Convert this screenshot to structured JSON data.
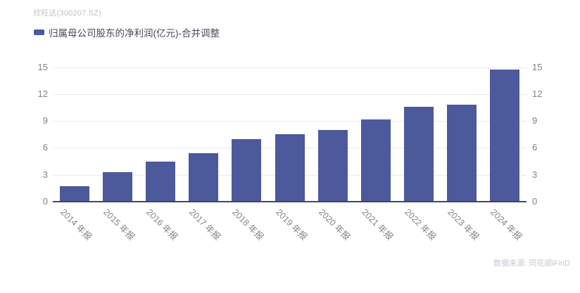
{
  "header": {
    "title": "欣旺达(300207.SZ)"
  },
  "legend": {
    "label": "归属母公司股东的净利润(亿元)-合并调整",
    "marker_color": "#4c599b"
  },
  "footer": {
    "source": "数据来源: 同花顺iFinD"
  },
  "chart_data": {
    "type": "bar",
    "title": "欣旺达(300207.SZ)",
    "categories": [
      "2014 年报",
      "2015 年报",
      "2016 年报",
      "2017 年报",
      "2018 年报",
      "2019 年报",
      "2020 年报",
      "2021 年报",
      "2022 年报",
      "2023 年报",
      "2024 年报"
    ],
    "series": [
      {
        "name": "归属母公司股东的净利润(亿元)-合并调整",
        "values": [
          1.7,
          3.3,
          4.5,
          5.4,
          7.0,
          7.5,
          8.0,
          9.2,
          10.6,
          10.8,
          14.7
        ]
      }
    ],
    "xlabel": "",
    "ylabel": "",
    "ylim": [
      0,
      15
    ],
    "yticks": [
      0,
      3,
      6,
      9,
      12,
      15
    ],
    "dual_y_axis": true,
    "grid": true,
    "legend_position": "top-left",
    "x_label_rotation_deg": 45,
    "bar_color": "#4c599b",
    "grid_color": "#e9ebf3",
    "axis_line_color": "#3d4770",
    "tick_label_color": "#81818b",
    "x_label_color": "#85858e"
  }
}
